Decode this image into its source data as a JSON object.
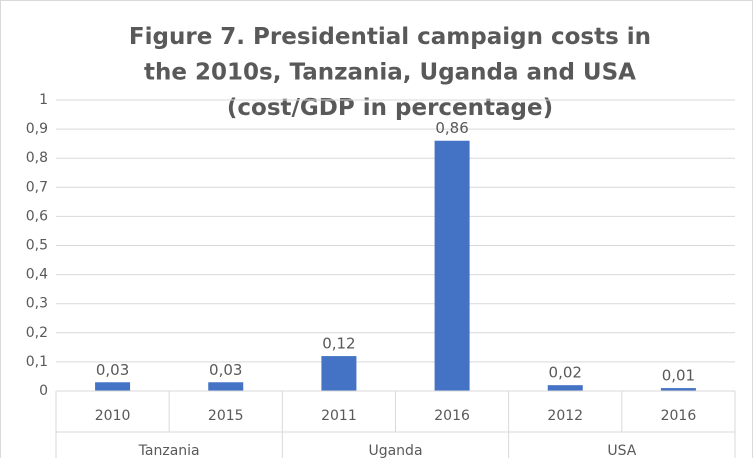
{
  "chart_data": {
    "type": "bar",
    "title": "Figure 7. Presidential campaign costs in the 2010s, Tanzania, Uganda and USA (cost/GDP in percentage)",
    "color": "#4472c4",
    "grid": true,
    "ylim": [
      0,
      1
    ],
    "yticks": [
      0,
      {
        "value": 0.1,
        "label": "0,1"
      },
      {
        "value": 0.2,
        "label": "0,2"
      },
      {
        "value": 0.3,
        "label": "0,3"
      },
      {
        "value": 0.4,
        "label": "0,4"
      },
      {
        "value": 0.5,
        "label": "0,5"
      },
      {
        "value": 0.6,
        "label": "0,6"
      },
      {
        "value": 0.7,
        "label": "0,7"
      },
      {
        "value": 0.8,
        "label": "0,8"
      },
      {
        "value": 0.9,
        "label": "0,9"
      },
      1
    ],
    "groups": [
      {
        "name": "Tanzania",
        "categories": [
          "2010",
          "2015"
        ],
        "values": [
          0.03,
          0.03
        ],
        "value_labels": [
          "0,03",
          "0,03"
        ]
      },
      {
        "name": "Uganda",
        "categories": [
          "2011",
          "2016"
        ],
        "values": [
          0.12,
          0.86
        ],
        "value_labels": [
          "0,12",
          "0,86"
        ]
      },
      {
        "name": "USA",
        "categories": [
          "2012",
          "2016"
        ],
        "values": [
          0.02,
          0.01
        ],
        "value_labels": [
          "0,02",
          "0,01"
        ]
      }
    ]
  }
}
